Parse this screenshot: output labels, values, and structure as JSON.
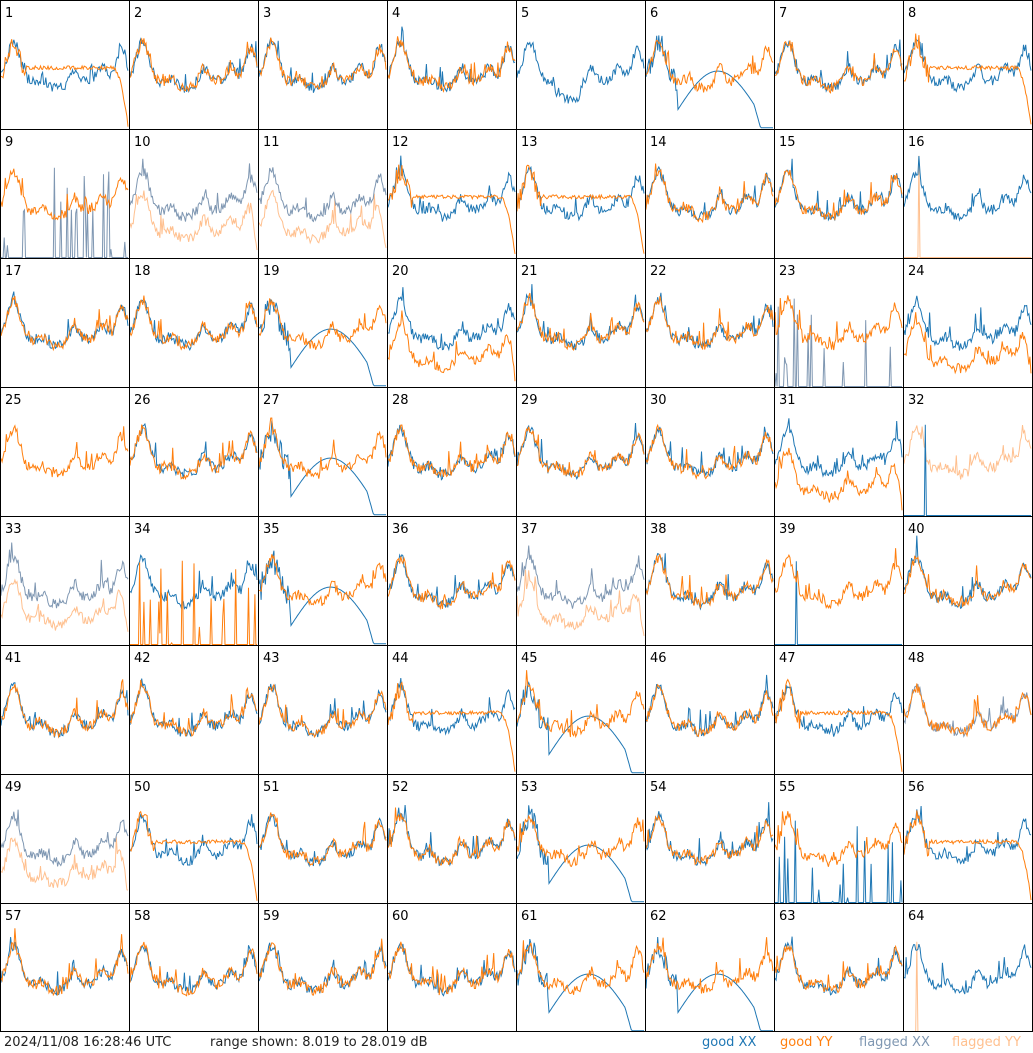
{
  "footer": {
    "timestamp": "2024/11/08 16:28:46 UTC",
    "range_text": "range shown: 8.019 to 28.019 dB"
  },
  "legend": [
    {
      "label": "good XX",
      "color": "#1f77b4"
    },
    {
      "label": "good YY",
      "color": "#ff7f0e"
    },
    {
      "label": "flagged XX",
      "color": "#7f97b2"
    },
    {
      "label": "flagged YY",
      "color": "#ffc08f"
    }
  ],
  "colors": {
    "good_xx": "#1f77b4",
    "good_yy": "#ff7f0e",
    "flagged_xx": "#7f97b2",
    "flagged_yy": "#ffc08f"
  },
  "chart_data": {
    "type": "line",
    "title": "",
    "xlabel": "",
    "ylabel": "",
    "ylim": [
      8.019,
      28.019
    ],
    "unit": "dB",
    "panel_labels": [
      "1",
      "2",
      "3",
      "4",
      "5",
      "6",
      "7",
      "8",
      "9",
      "10",
      "11",
      "12",
      "13",
      "14",
      "15",
      "16",
      "17",
      "18",
      "19",
      "20",
      "21",
      "22",
      "23",
      "24",
      "25",
      "26",
      "27",
      "28",
      "29",
      "30",
      "31",
      "32",
      "33",
      "34",
      "35",
      "36",
      "37",
      "38",
      "39",
      "40",
      "41",
      "42",
      "43",
      "44",
      "45",
      "46",
      "47",
      "48",
      "49",
      "50",
      "51",
      "52",
      "53",
      "54",
      "55",
      "56",
      "57",
      "58",
      "59",
      "60",
      "61",
      "62",
      "63",
      "64"
    ],
    "panel_types": {
      "1": "rolloff",
      "2": "n",
      "3": "n",
      "4": "n",
      "5": "xonly",
      "6": "split",
      "7": "n",
      "8": "drop",
      "9": "yonly_fxspikes",
      "10": "flagged_both",
      "11": "flagged_both",
      "12": "rolloff",
      "13": "drop",
      "14": "n",
      "15": "n",
      "16": "xonly_fyspike",
      "17": "n",
      "18": "n",
      "19": "split",
      "20": "lowy",
      "21": "n",
      "22": "n",
      "23": "yonly_fxspikes",
      "24": "lowy",
      "25": "yonly",
      "26": "n",
      "27": "split",
      "28": "n",
      "29": "n",
      "30": "n",
      "31": "lowy",
      "32": "flagged_y",
      "33": "flagged_both",
      "34": "xonly_yspikes",
      "35": "split",
      "36": "n",
      "37": "flagged_both",
      "38": "n",
      "39": "yonly_xspike",
      "40": "n",
      "41": "n",
      "42": "n",
      "43": "n",
      "44": "rolloff",
      "45": "split",
      "46": "n",
      "47": "rolloff",
      "48": "fx_y",
      "49": "flagged_both",
      "50": "rolloff",
      "51": "n",
      "52": "n",
      "53": "split",
      "54": "n",
      "55": "yonly_xspikes",
      "56": "drop",
      "57": "n",
      "58": "n",
      "59": "n",
      "60": "n",
      "61": "split",
      "62": "split",
      "63": "n",
      "64": "xonly_fyspike"
    }
  }
}
